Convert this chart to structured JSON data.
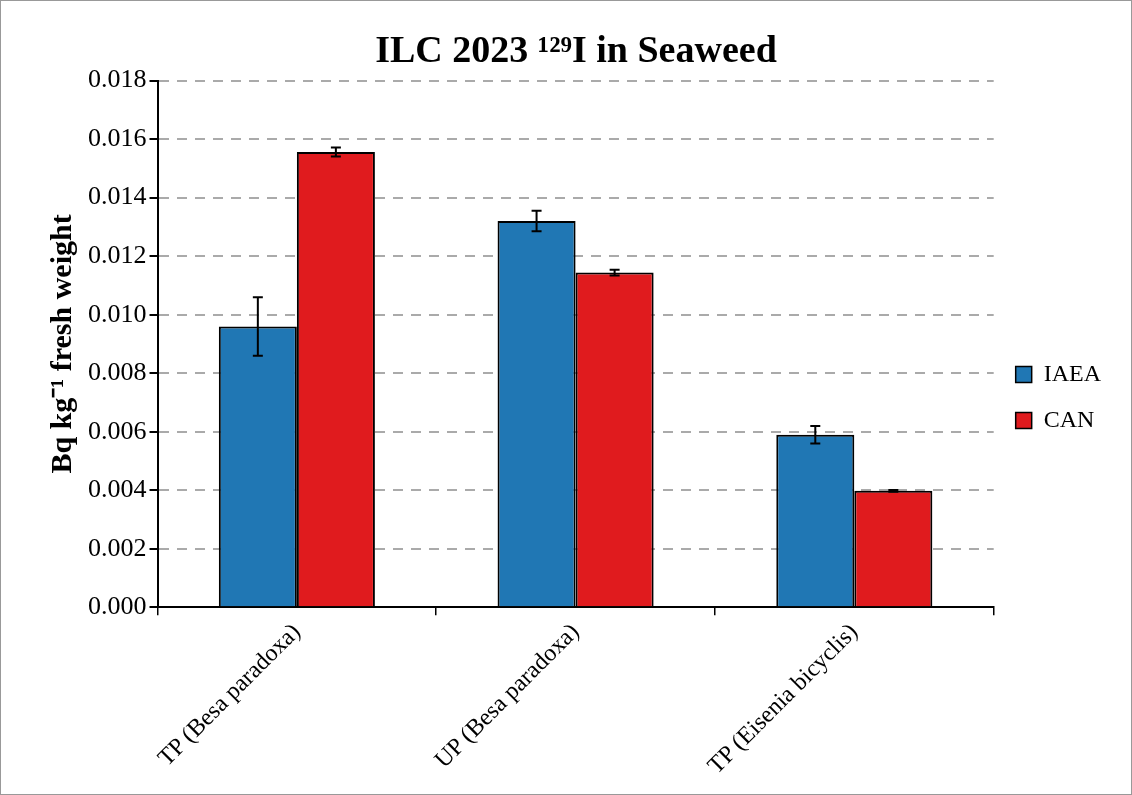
{
  "chart_data": {
    "type": "bar",
    "title": "ILC 2023 ¹²⁹I in Seaweed",
    "ylabel": "Bq kg⁻¹ fresh weight",
    "categories": [
      "TP (Besa paradoxa)",
      "UP (Besa paradoxa)",
      "TP (Eisenia bicyclis)"
    ],
    "series": [
      {
        "name": "IAEA",
        "color": "#2077b4",
        "values": [
          0.0096,
          0.0132,
          0.0059
        ],
        "errors": [
          0.001,
          0.00035,
          0.0003
        ]
      },
      {
        "name": "CAN",
        "color": "#e01b1e",
        "values": [
          0.01556,
          0.01144,
          0.00398
        ],
        "errors": [
          0.00015,
          0.0001,
          3e-05
        ]
      }
    ],
    "ylim": [
      0,
      0.018
    ],
    "yticks": [
      {
        "value": 0,
        "label": "0.000"
      },
      {
        "value": 0.002,
        "label": "0.002"
      },
      {
        "value": 0.004,
        "label": "0.004"
      },
      {
        "value": 0.006,
        "label": "0.006"
      },
      {
        "value": 0.008,
        "label": "0.008"
      },
      {
        "value": 0.01,
        "label": "0.010"
      },
      {
        "value": 0.012,
        "label": "0.012"
      },
      {
        "value": 0.014,
        "label": "0.014"
      },
      {
        "value": 0.016,
        "label": "0.016"
      },
      {
        "value": 0.018,
        "label": "0.018"
      }
    ],
    "grid": "y",
    "legend": "right"
  }
}
